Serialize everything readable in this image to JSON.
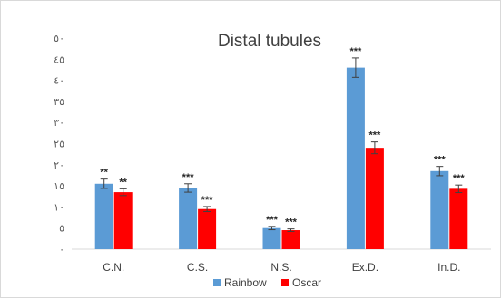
{
  "chart_data": {
    "type": "bar",
    "title": "Distal tubules",
    "xlabel": "",
    "ylabel": "",
    "categories": [
      "C.N.",
      "C.S.",
      "N.S.",
      "Ex.D.",
      "In.D."
    ],
    "ylim": [
      0,
      50
    ],
    "ytick_values": [
      0,
      5,
      10,
      15,
      20,
      25,
      30,
      35,
      40,
      45,
      50
    ],
    "ytick_labels": [
      "٠",
      "٥",
      "١٠",
      "١٥",
      "٢٠",
      "٢٥",
      "٣٠",
      "٣٥",
      "٤٠",
      "٤٥",
      "٥٠"
    ],
    "grid": false,
    "legend_position": "bottom",
    "series": [
      {
        "name": "Rainbow",
        "color": "#5b9bd5",
        "values": [
          15.5,
          14.5,
          5,
          43,
          18.5
        ],
        "errors": [
          1.1,
          1.0,
          0.4,
          2.3,
          1.1
        ],
        "significance": [
          "**",
          "***",
          "***",
          "***",
          "***"
        ]
      },
      {
        "name": "Oscar",
        "color": "#ff0000",
        "values": [
          13.5,
          9.5,
          4.5,
          24,
          14.3
        ],
        "errors": [
          0.8,
          0.6,
          0.3,
          1.4,
          0.9
        ],
        "significance": [
          "**",
          "***",
          "***",
          "***",
          "***"
        ]
      }
    ]
  }
}
